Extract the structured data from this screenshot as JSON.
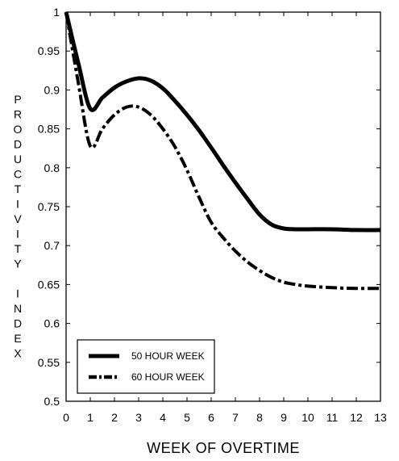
{
  "chart_data": {
    "type": "line",
    "title": "",
    "xlabel": "WEEK OF OVERTIME",
    "ylabel": "PRODUCTIVITY INDEX",
    "xlim": [
      0,
      13
    ],
    "ylim": [
      0.5,
      1
    ],
    "x_ticks": [
      "0",
      "1",
      "2",
      "3",
      "4",
      "5",
      "6",
      "7",
      "8",
      "9",
      "10",
      "11",
      "12",
      "13"
    ],
    "y_ticks": [
      "0.5",
      "0.55",
      "0.6",
      "0.65",
      "0.7",
      "0.75",
      "0.8",
      "0.85",
      "0.9",
      "0.95",
      "1"
    ],
    "grid": false,
    "legend_position": "bottom-left",
    "series": [
      {
        "name": "50 HOUR WEEK",
        "style": "solid",
        "x": [
          0,
          0.5,
          1,
          1.5,
          2,
          2.5,
          3,
          3.5,
          4,
          4.5,
          5,
          5.5,
          6,
          6.5,
          7,
          7.5,
          8,
          8.5,
          9,
          9.5,
          10,
          11,
          12,
          13
        ],
        "y": [
          1.0,
          0.935,
          0.876,
          0.89,
          0.903,
          0.911,
          0.915,
          0.912,
          0.902,
          0.886,
          0.868,
          0.848,
          0.826,
          0.803,
          0.781,
          0.76,
          0.74,
          0.727,
          0.722,
          0.721,
          0.721,
          0.721,
          0.72,
          0.72
        ]
      },
      {
        "name": "60 HOUR WEEK",
        "style": "dash-dot",
        "x": [
          0,
          0.5,
          1,
          1.5,
          2,
          2.5,
          3,
          3.5,
          4,
          4.5,
          5,
          5.5,
          6,
          6.5,
          7,
          7.5,
          8,
          8.5,
          9,
          9.5,
          10,
          11,
          12,
          13
        ],
        "y": [
          1.0,
          0.91,
          0.828,
          0.85,
          0.868,
          0.878,
          0.878,
          0.868,
          0.85,
          0.827,
          0.797,
          0.762,
          0.73,
          0.71,
          0.693,
          0.679,
          0.668,
          0.659,
          0.653,
          0.65,
          0.648,
          0.646,
          0.645,
          0.645
        ]
      }
    ]
  }
}
